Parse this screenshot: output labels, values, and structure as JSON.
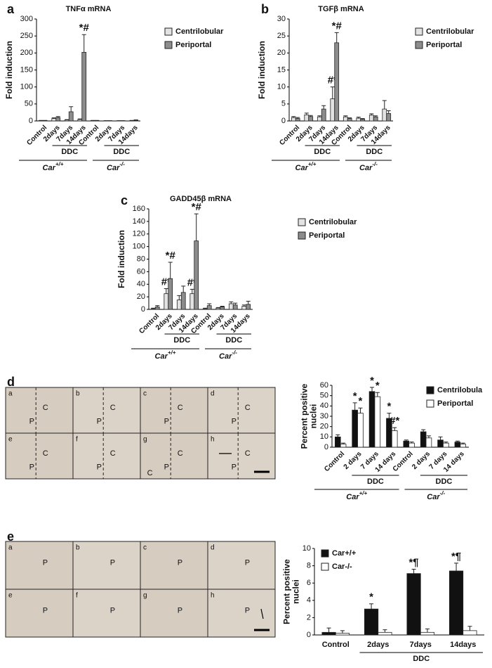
{
  "chart_data": [
    {
      "type": "bar",
      "title": "TNFα mRNA",
      "ylabel": [
        "Fold induction"
      ],
      "categories": [
        "Control",
        "2days",
        "7days",
        "14days",
        "Control",
        "2days",
        "7days",
        "14days"
      ],
      "series": [
        {
          "name": "Centrilobular",
          "color": "#e2e2e2",
          "values": [
            1,
            7,
            3,
            4,
            1,
            0.5,
            0.5,
            1
          ],
          "errors": [
            0.5,
            2,
            1,
            2,
            0.5,
            0.3,
            0.3,
            0.5
          ],
          "annotations": [
            null,
            null,
            null,
            null,
            null,
            null,
            null,
            null
          ]
        },
        {
          "name": "Periportal",
          "color": "#8c8c8c",
          "values": [
            1,
            10,
            27,
            202,
            1,
            0.5,
            0.5,
            2
          ],
          "errors": [
            0.5,
            3,
            15,
            52,
            0.5,
            0.3,
            0.3,
            1
          ],
          "annotations": [
            null,
            null,
            null,
            "*#",
            null,
            null,
            null,
            null
          ]
        }
      ],
      "ylim": [
        0,
        300
      ],
      "yticks": [
        0,
        50,
        100,
        150,
        200,
        250,
        300
      ],
      "treatment": [
        "DDC",
        "DDC"
      ],
      "genotype": [
        {
          "text": "Car",
          "sup": "+/+"
        },
        {
          "text": "Car",
          "sup": "-/-"
        }
      ]
    },
    {
      "type": "bar",
      "title": "TGFβ mRNA",
      "ylabel": [
        "Fold induction"
      ],
      "categories": [
        "Control",
        "2days",
        "7days",
        "14days",
        "Control",
        "2days",
        "7days",
        "14days"
      ],
      "series": [
        {
          "name": "Centrilobular",
          "color": "#e2e2e2",
          "values": [
            1,
            1.8,
            1.2,
            6.5,
            1.2,
            0.8,
            1.7,
            3.5
          ],
          "errors": [
            0.3,
            0.5,
            0.3,
            3.5,
            0.3,
            0.3,
            0.4,
            2.5
          ],
          "annotations": [
            null,
            null,
            null,
            "#*",
            null,
            null,
            null,
            null
          ]
        },
        {
          "name": "Periportal",
          "color": "#8c8c8c",
          "values": [
            0.7,
            1.3,
            3.5,
            23,
            0.7,
            0.5,
            1.2,
            2.2
          ],
          "errors": [
            0.3,
            0.3,
            1,
            3,
            0.2,
            0.2,
            0.3,
            0.8
          ],
          "annotations": [
            null,
            null,
            null,
            "*#",
            null,
            null,
            null,
            null
          ]
        }
      ],
      "ylim": [
        0,
        30
      ],
      "yticks": [
        0,
        5,
        10,
        15,
        20,
        25,
        30
      ],
      "treatment": [
        "DDC",
        "DDC"
      ],
      "genotype": [
        {
          "text": "Car",
          "sup": "+/+"
        },
        {
          "text": "Car",
          "sup": "-/-"
        }
      ]
    },
    {
      "type": "bar",
      "title": "GADD45β mRNA",
      "ylabel": [
        "Fold induction"
      ],
      "categories": [
        "Control",
        "2days",
        "7days",
        "14days",
        "Control",
        "2days",
        "7days",
        "14days"
      ],
      "series": [
        {
          "name": "Centrilobular",
          "color": "#e2e2e2",
          "values": [
            1,
            25,
            15,
            25,
            1,
            2,
            9,
            5
          ],
          "errors": [
            1,
            8,
            7,
            7,
            1,
            1,
            3,
            2
          ],
          "annotations": [
            null,
            "#*",
            null,
            "#*",
            null,
            null,
            null,
            null
          ]
        },
        {
          "name": "Periportal",
          "color": "#8c8c8c",
          "values": [
            4,
            49,
            27,
            109,
            6,
            4,
            7,
            8
          ],
          "errors": [
            2,
            26,
            10,
            43,
            3,
            1,
            3,
            5
          ],
          "annotations": [
            null,
            "*#",
            null,
            "*#",
            null,
            null,
            null,
            null
          ]
        }
      ],
      "ylim": [
        0,
        160
      ],
      "yticks": [
        0,
        20,
        40,
        60,
        80,
        100,
        120,
        140,
        160
      ],
      "treatment": [
        "DDC",
        "DDC"
      ],
      "genotype": [
        {
          "text": "Car",
          "sup": "+/+"
        },
        {
          "text": "Car",
          "sup": "-/-"
        }
      ]
    },
    {
      "type": "bar",
      "ylabel": [
        "Percent positive",
        "nuclei"
      ],
      "categories": [
        "Control",
        "2 days",
        "7 days",
        "14 days",
        "Control",
        "2 days",
        "7 days",
        "14 days"
      ],
      "series": [
        {
          "name": "Centrilobula",
          "color": "#111111",
          "values": [
            10,
            36,
            54,
            28,
            6,
            15,
            7,
            5
          ],
          "errors": [
            2,
            7,
            4,
            5,
            1,
            2,
            3,
            1
          ],
          "annotations": [
            null,
            "*",
            "*",
            "*",
            null,
            null,
            null,
            null
          ]
        },
        {
          "name": "Periportal",
          "color": "#ffffff",
          "values": [
            3,
            33,
            49,
            16,
            4,
            9,
            4,
            3
          ],
          "errors": [
            1,
            5,
            4,
            3,
            1,
            2,
            1,
            1
          ],
          "annotations": [
            null,
            "*",
            "*",
            "#*",
            null,
            null,
            null,
            null
          ]
        }
      ],
      "ylim": [
        0,
        60
      ],
      "yticks": [
        0,
        10,
        20,
        30,
        40,
        50,
        60
      ],
      "treatment": [
        "DDC",
        "DDC"
      ],
      "genotype": [
        {
          "text": "Car",
          "sup": "+/+"
        },
        {
          "text": "Car",
          "sup": "-/-"
        }
      ]
    },
    {
      "type": "bar",
      "ylabel": [
        "Percent positive",
        "nuclei"
      ],
      "categories": [
        "Control",
        "2days",
        "7days",
        "14days"
      ],
      "series": [
        {
          "name": "Car+/+",
          "color": "#111111",
          "values": [
            0.3,
            3,
            7.1,
            7.4
          ],
          "errors": [
            0.5,
            0.6,
            0.5,
            0.9
          ],
          "annotations": [
            null,
            "*",
            "*¶",
            "*¶"
          ]
        },
        {
          "name": "Car-/-",
          "color": "#ffffff",
          "values": [
            0.2,
            0.3,
            0.3,
            0.5
          ],
          "errors": [
            0.3,
            0.3,
            0.4,
            0.5
          ],
          "annotations": [
            null,
            null,
            null,
            null
          ]
        }
      ],
      "ylim": [
        0,
        10
      ],
      "yticks": [
        0,
        2,
        4,
        6,
        8,
        10
      ],
      "treatment": [
        "DDC"
      ]
    }
  ],
  "figure": {
    "panel_letters": [
      "a",
      "b",
      "c",
      "d",
      "e"
    ],
    "micrographs_d": [
      {
        "letter": "a",
        "labels": [
          "C",
          "P"
        ]
      },
      {
        "letter": "b",
        "labels": [
          "C",
          "P"
        ]
      },
      {
        "letter": "c",
        "labels": [
          "C",
          "P"
        ]
      },
      {
        "letter": "d",
        "labels": [
          "C",
          "P"
        ]
      },
      {
        "letter": "e",
        "labels": [
          "C",
          "P"
        ]
      },
      {
        "letter": "f",
        "labels": [
          "C",
          "P"
        ]
      },
      {
        "letter": "g",
        "labels": [
          "C",
          "P",
          "C"
        ]
      },
      {
        "letter": "h",
        "labels": [
          "C",
          "P"
        ]
      }
    ],
    "micrographs_e": [
      {
        "letter": "a",
        "labels": [
          "P"
        ]
      },
      {
        "letter": "b",
        "labels": [
          "P"
        ]
      },
      {
        "letter": "c",
        "labels": [
          "P"
        ]
      },
      {
        "letter": "d",
        "labels": [
          "P"
        ]
      },
      {
        "letter": "e",
        "labels": [
          "P"
        ]
      },
      {
        "letter": "f",
        "labels": [
          "P"
        ]
      },
      {
        "letter": "g",
        "labels": [
          "P"
        ]
      },
      {
        "letter": "h",
        "labels": [
          "P"
        ]
      }
    ]
  }
}
